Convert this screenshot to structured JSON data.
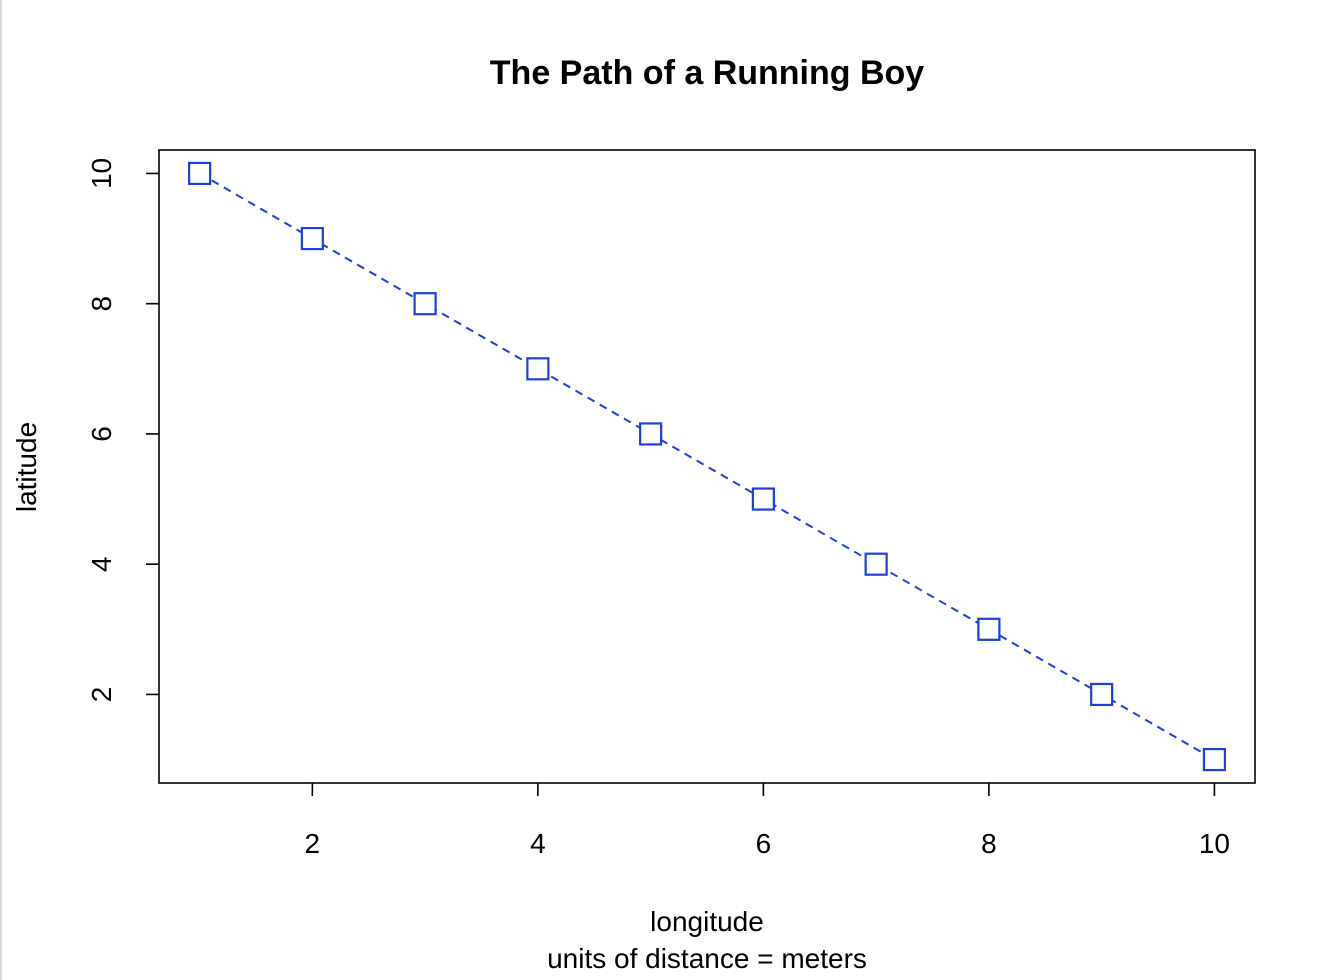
{
  "chart_data": {
    "type": "line",
    "title": "The Path of a Running Boy",
    "xlabel": "longitude",
    "subtitle": "units of distance = meters",
    "ylabel": "latitude",
    "x": [
      1,
      2,
      3,
      4,
      5,
      6,
      7,
      8,
      9,
      10
    ],
    "series": [
      {
        "values": [
          10,
          9,
          8,
          7,
          6,
          5,
          4,
          3,
          2,
          1
        ],
        "color": "#1f3fe0",
        "line_style": "dashed",
        "marker": "open-square"
      }
    ],
    "xticks": [
      "2",
      "4",
      "6",
      "8",
      "10"
    ],
    "yticks": [
      "2",
      "4",
      "6",
      "8",
      "10"
    ],
    "xlim": [
      0.64,
      10.36
    ],
    "ylim": [
      0.64,
      10.36
    ],
    "grid": false,
    "legend": "none"
  }
}
